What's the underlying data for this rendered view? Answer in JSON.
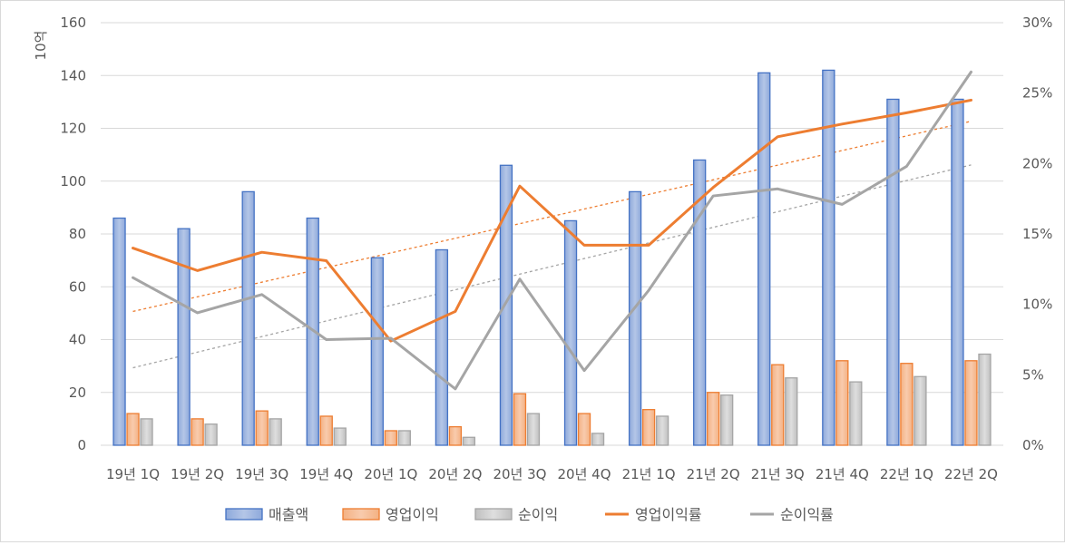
{
  "chart_data": {
    "type": "bar",
    "title": "",
    "ylabel": "10억",
    "ylim": [
      0,
      160
    ],
    "y_ticks": [
      0,
      20,
      40,
      60,
      80,
      100,
      120,
      140,
      160
    ],
    "y2lim": [
      0,
      30
    ],
    "y2_ticks": [
      "0%",
      "5%",
      "10%",
      "15%",
      "20%",
      "25%",
      "30%"
    ],
    "grid": "horizontal",
    "legend_position": "bottom",
    "categories": [
      "19년 1Q",
      "19년 2Q",
      "19년 3Q",
      "19년 4Q",
      "20년 1Q",
      "20년 2Q",
      "20년 3Q",
      "20년 4Q",
      "21년 1Q",
      "21년 2Q",
      "21년 3Q",
      "21년 4Q",
      "22년 1Q",
      "22년 2Q"
    ],
    "series": [
      {
        "name": "매출액",
        "type": "bar",
        "axis": "left",
        "color": "#4472c4",
        "values": [
          86,
          82,
          96,
          86,
          71,
          74,
          106,
          85,
          96,
          108,
          141,
          142,
          131,
          131
        ]
      },
      {
        "name": "영업이익",
        "type": "bar",
        "axis": "left",
        "color": "#ed7d31",
        "values": [
          12,
          10,
          13,
          11,
          5.5,
          7,
          19.5,
          12,
          13.5,
          20,
          30.5,
          32,
          31,
          32
        ]
      },
      {
        "name": "순이익",
        "type": "bar",
        "axis": "left",
        "color": "#a5a5a5",
        "values": [
          10,
          8,
          10,
          6.5,
          5.5,
          3,
          12,
          4.5,
          11,
          19,
          25.5,
          24,
          26,
          34.5
        ]
      },
      {
        "name": "영업이익률",
        "type": "line",
        "axis": "right",
        "color": "#ed7d31",
        "values": [
          14.0,
          12.4,
          13.7,
          13.1,
          7.4,
          9.5,
          18.4,
          14.2,
          14.2,
          18.3,
          21.9,
          22.8,
          23.6,
          24.5
        ]
      },
      {
        "name": "순이익률",
        "type": "line",
        "axis": "right",
        "color": "#a5a5a5",
        "values": [
          11.9,
          9.4,
          10.7,
          7.5,
          7.6,
          4.0,
          11.8,
          5.3,
          11.0,
          17.7,
          18.2,
          17.1,
          19.8,
          26.5
        ]
      }
    ],
    "trendlines": [
      {
        "series": "영업이익률",
        "color": "#ed7d31",
        "from": 9.5,
        "to": 23.0
      },
      {
        "series": "순이익률",
        "color": "#a5a5a5",
        "from": 5.5,
        "to": 19.9
      }
    ]
  }
}
